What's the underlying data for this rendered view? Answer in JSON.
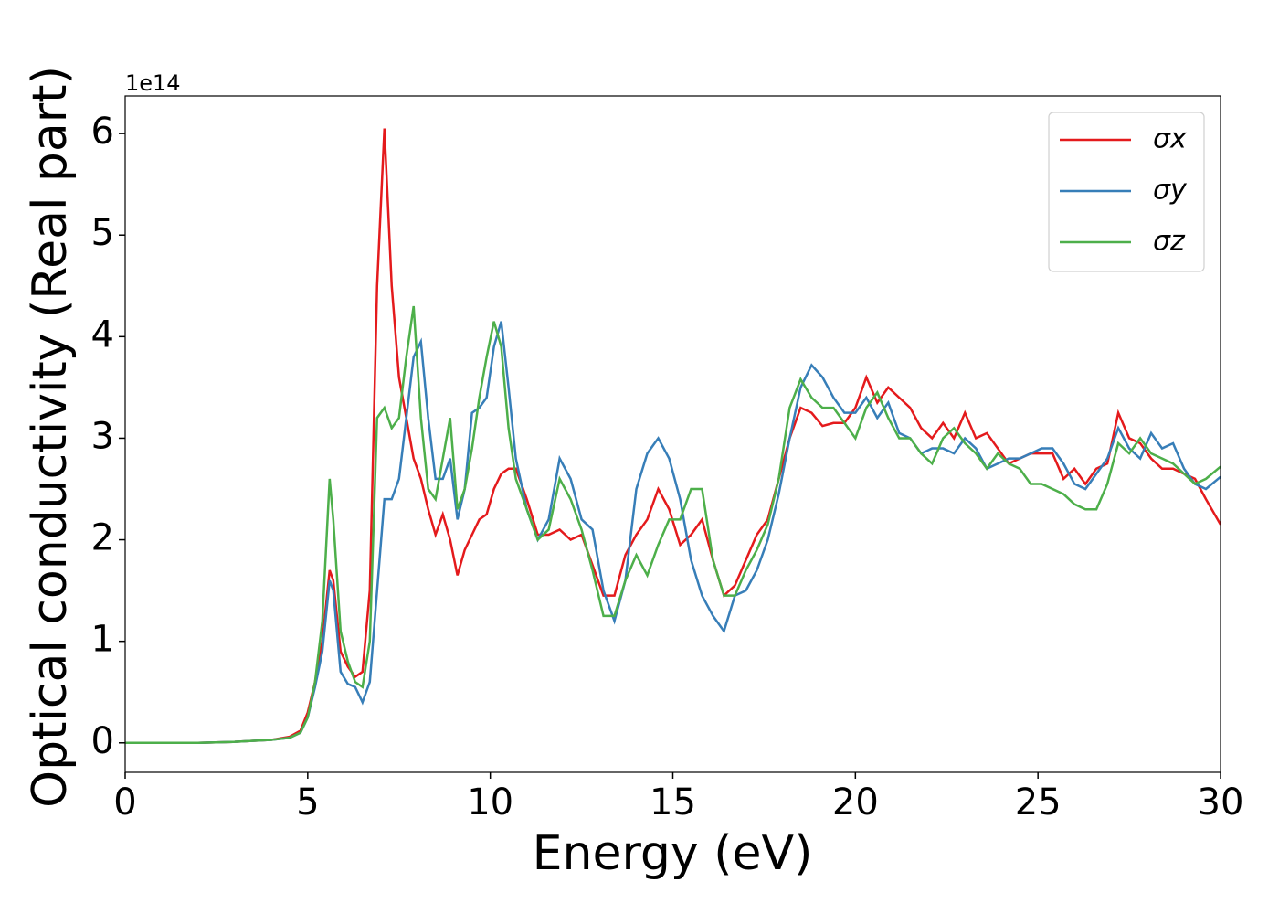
{
  "chart_data": {
    "type": "line",
    "xlabel": "Energy (eV)",
    "ylabel": "Optical conductivity (Real part)",
    "y_offset_label": "1e14",
    "x": [
      0,
      1,
      2,
      3,
      4,
      4.5,
      4.8,
      5,
      5.2,
      5.4,
      5.6,
      5.7,
      5.9,
      6.1,
      6.3,
      6.5,
      6.7,
      6.9,
      7.1,
      7.3,
      7.5,
      7.7,
      7.9,
      8.1,
      8.3,
      8.5,
      8.7,
      8.9,
      9.1,
      9.3,
      9.5,
      9.7,
      9.9,
      10.1,
      10.3,
      10.5,
      10.7,
      11,
      11.3,
      11.6,
      11.9,
      12.2,
      12.5,
      12.8,
      13.1,
      13.4,
      13.7,
      14,
      14.3,
      14.6,
      14.9,
      15.2,
      15.5,
      15.8,
      16.1,
      16.4,
      16.7,
      17,
      17.3,
      17.6,
      17.9,
      18.2,
      18.5,
      18.8,
      19.1,
      19.4,
      19.7,
      20,
      20.3,
      20.6,
      20.9,
      21.2,
      21.5,
      21.8,
      22.1,
      22.4,
      22.7,
      23,
      23.3,
      23.6,
      23.9,
      24.2,
      24.5,
      24.8,
      25.1,
      25.4,
      25.7,
      26,
      26.3,
      26.6,
      26.9,
      27.2,
      27.5,
      27.8,
      28.1,
      28.4,
      28.7,
      29,
      29.3,
      29.6,
      30
    ],
    "series": [
      {
        "name": "σx",
        "color": "#e41a1c",
        "values": [
          0,
          0,
          0,
          0.01,
          0.03,
          0.06,
          0.12,
          0.3,
          0.6,
          1.0,
          1.7,
          1.6,
          0.9,
          0.75,
          0.65,
          0.7,
          1.5,
          4.5,
          6.05,
          4.5,
          3.6,
          3.2,
          2.8,
          2.6,
          2.3,
          2.05,
          2.25,
          2.0,
          1.65,
          1.9,
          2.05,
          2.2,
          2.25,
          2.5,
          2.65,
          2.7,
          2.7,
          2.4,
          2.05,
          2.05,
          2.1,
          2.0,
          2.05,
          1.75,
          1.45,
          1.45,
          1.85,
          2.05,
          2.2,
          2.5,
          2.3,
          1.95,
          2.05,
          2.2,
          1.8,
          1.45,
          1.55,
          1.8,
          2.05,
          2.2,
          2.6,
          3.0,
          3.3,
          3.25,
          3.12,
          3.15,
          3.15,
          3.3,
          3.6,
          3.35,
          3.5,
          3.4,
          3.3,
          3.1,
          3.0,
          3.15,
          3.0,
          3.25,
          3.0,
          3.05,
          2.9,
          2.75,
          2.8,
          2.85,
          2.85,
          2.85,
          2.6,
          2.7,
          2.55,
          2.7,
          2.75,
          3.25,
          3.0,
          2.95,
          2.8,
          2.7,
          2.7,
          2.65,
          2.6,
          2.4,
          2.15
        ]
      },
      {
        "name": "σy",
        "color": "#377eb8",
        "values": [
          0,
          0,
          0,
          0.01,
          0.03,
          0.05,
          0.1,
          0.25,
          0.55,
          0.9,
          1.6,
          1.5,
          0.7,
          0.58,
          0.55,
          0.4,
          0.6,
          1.5,
          2.4,
          2.4,
          2.6,
          3.2,
          3.8,
          3.95,
          3.2,
          2.6,
          2.6,
          2.8,
          2.2,
          2.5,
          3.25,
          3.3,
          3.4,
          3.9,
          4.15,
          3.5,
          2.8,
          2.3,
          2.0,
          2.2,
          2.8,
          2.6,
          2.2,
          2.1,
          1.5,
          1.2,
          1.6,
          2.5,
          2.85,
          3.0,
          2.8,
          2.4,
          1.8,
          1.45,
          1.25,
          1.1,
          1.45,
          1.5,
          1.7,
          2.0,
          2.45,
          3.0,
          3.5,
          3.72,
          3.6,
          3.4,
          3.25,
          3.25,
          3.4,
          3.2,
          3.35,
          3.05,
          3.0,
          2.85,
          2.9,
          2.9,
          2.85,
          3.0,
          2.9,
          2.7,
          2.75,
          2.8,
          2.8,
          2.85,
          2.9,
          2.9,
          2.75,
          2.55,
          2.5,
          2.65,
          2.8,
          3.1,
          2.9,
          2.8,
          3.05,
          2.9,
          2.95,
          2.7,
          2.55,
          2.5,
          2.62
        ]
      },
      {
        "name": "σz",
        "color": "#4daf4a",
        "values": [
          0,
          0,
          0,
          0.01,
          0.03,
          0.05,
          0.1,
          0.25,
          0.6,
          1.2,
          2.6,
          2.2,
          1.1,
          0.8,
          0.6,
          0.55,
          1.0,
          3.2,
          3.3,
          3.1,
          3.2,
          3.8,
          4.3,
          3.2,
          2.5,
          2.4,
          2.8,
          3.2,
          2.3,
          2.5,
          2.9,
          3.4,
          3.8,
          4.15,
          3.9,
          3.1,
          2.6,
          2.3,
          2.0,
          2.1,
          2.6,
          2.4,
          2.1,
          1.7,
          1.25,
          1.25,
          1.6,
          1.85,
          1.65,
          1.95,
          2.2,
          2.2,
          2.5,
          2.5,
          1.8,
          1.45,
          1.45,
          1.7,
          1.9,
          2.15,
          2.6,
          3.3,
          3.58,
          3.4,
          3.3,
          3.3,
          3.15,
          3.0,
          3.3,
          3.45,
          3.2,
          3.0,
          3.0,
          2.85,
          2.75,
          3.0,
          3.1,
          2.95,
          2.85,
          2.7,
          2.85,
          2.75,
          2.7,
          2.55,
          2.55,
          2.5,
          2.45,
          2.35,
          2.3,
          2.3,
          2.55,
          2.95,
          2.85,
          3.0,
          2.85,
          2.8,
          2.75,
          2.65,
          2.55,
          2.6,
          2.72
        ]
      }
    ],
    "xlim": [
      0,
      30
    ],
    "xticks": [
      0,
      5,
      10,
      15,
      20,
      25,
      30
    ],
    "ylim": [
      -0.29,
      6.37
    ],
    "yticks": [
      0,
      1,
      2,
      3,
      4,
      5,
      6
    ],
    "grid": false,
    "legend": "upper right"
  }
}
